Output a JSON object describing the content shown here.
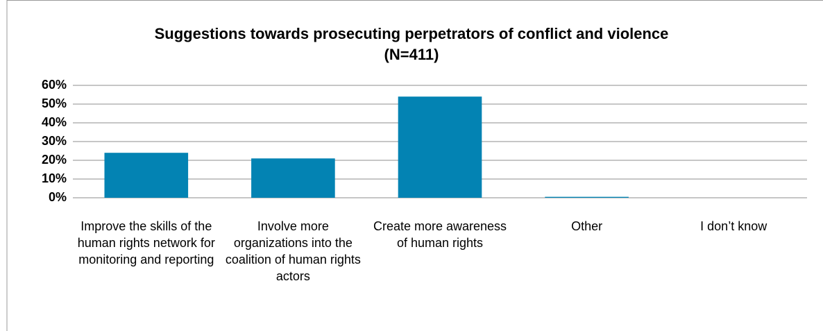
{
  "chart_data": {
    "type": "bar",
    "title": "Suggestions towards prosecuting perpetrators of conflict and violence",
    "subtitle": "(N=411)",
    "categories": [
      "Improve the skills of the human rights network for monitoring and reporting",
      "Involve more organizations into the coalition of human rights actors",
      "Create more awareness of human rights",
      "Other",
      "I don’t know"
    ],
    "values": [
      24,
      21,
      54,
      0.5,
      0
    ],
    "color": "#0383b3",
    "ylim": [
      0,
      60
    ],
    "yticks": [
      {
        "value": 0,
        "label": "0%"
      },
      {
        "value": 10,
        "label": "10%"
      },
      {
        "value": 20,
        "label": "20%"
      },
      {
        "value": 30,
        "label": "30%"
      },
      {
        "value": 40,
        "label": "40%"
      },
      {
        "value": 50,
        "label": "50%"
      },
      {
        "value": 60,
        "label": "60%"
      }
    ],
    "grid": true
  }
}
